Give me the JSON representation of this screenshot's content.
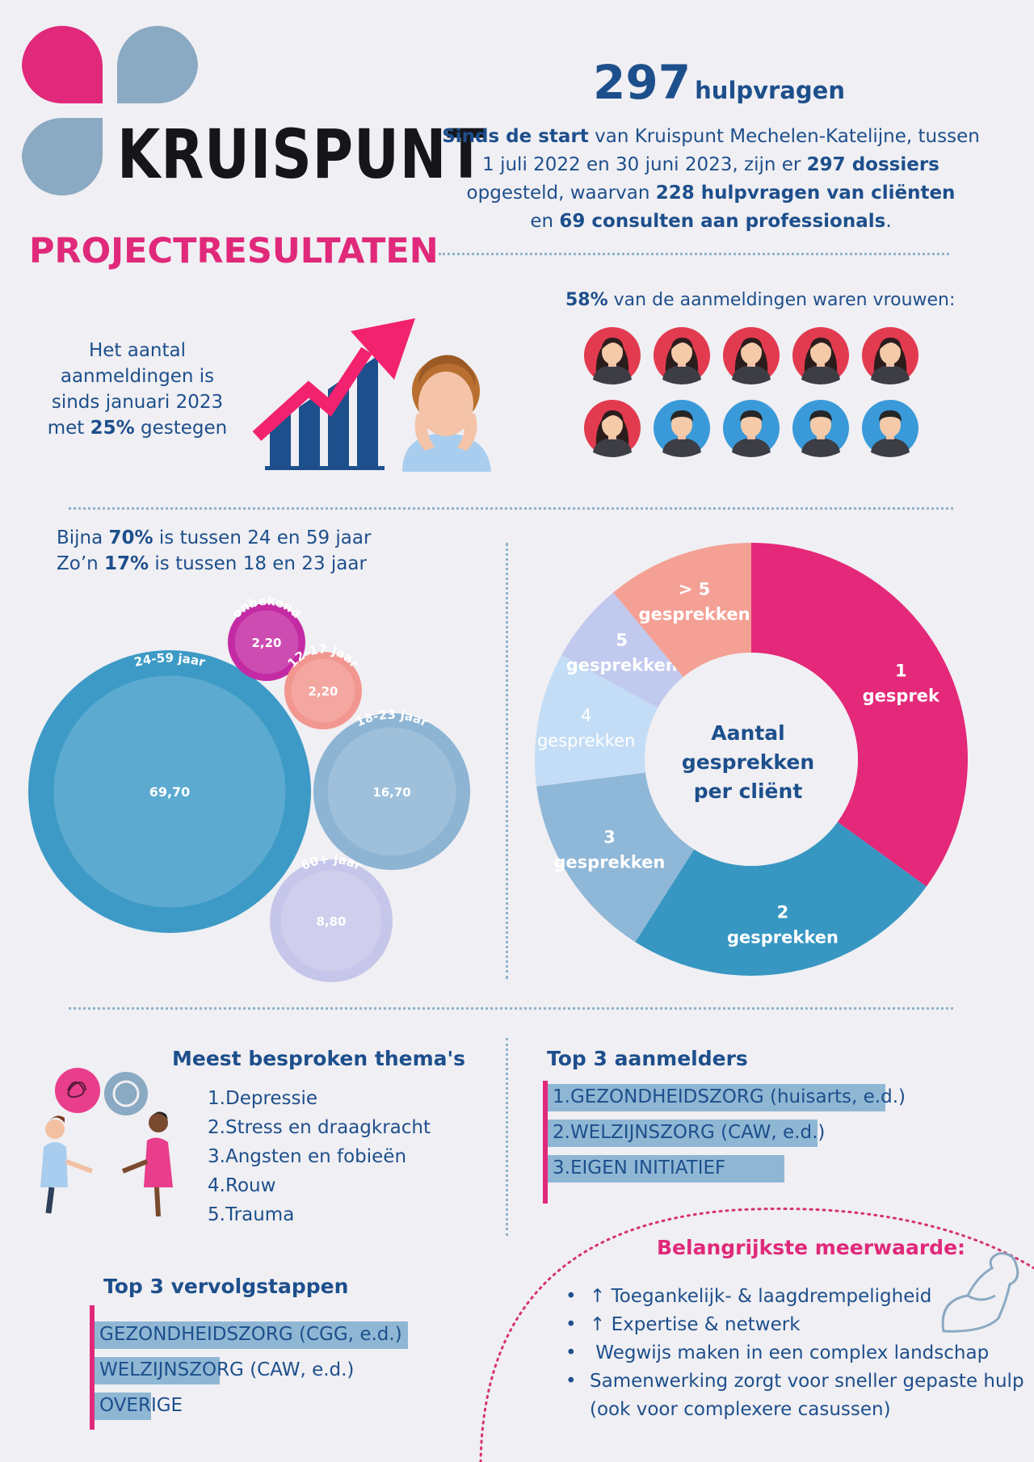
{
  "logo": {
    "wordmark": "KRUISPUNT",
    "colors": {
      "pink": "#e0297a",
      "blue": "#8aa9c2"
    }
  },
  "header": {
    "count": "297",
    "count_unit": "hulpvragen",
    "intro": {
      "l1_b": "Sinds de start",
      "l1_t": " van Kruispunt Mechelen-Katelijne, tussen",
      "l2_t": "1 juli 2022 en 30 juni 2023, zijn er ",
      "l2_b": "297 dossiers",
      "l3_t": "opgesteld, waarvan ",
      "l3_b": "228 hulpvragen van cliënten",
      "l4_t": "en ",
      "l4_b": "69 consulten aan professionals",
      "l4_e": "."
    }
  },
  "page_title": "PROJECTRESULTATEN",
  "growth": {
    "l1": "Het aantal",
    "l2": "aanmeldingen is",
    "l3": "sinds januari 2023",
    "l4_t": "met ",
    "l4_b": "25%",
    "l4_e": " gestegen"
  },
  "women": {
    "pct": "58%",
    "text": " van de aanmeldingen waren vrouwen:",
    "icons": [
      "woman-icon",
      "woman-icon",
      "woman-icon",
      "woman-icon",
      "woman-icon",
      "woman-icon",
      "man-icon",
      "man-icon",
      "man-icon",
      "man-icon"
    ]
  },
  "age": {
    "l1_t": "Bijna ",
    "l1_b": "70%",
    "l1_e": " is tussen 24 en 59 jaar",
    "l2_t": "Zo’n ",
    "l2_b": "17%",
    "l2_e": " is tussen 18 en 23 jaar"
  },
  "chart_data": [
    {
      "type": "bubble",
      "series": [
        {
          "label": "24-59 jaar",
          "value": 69.7,
          "display": "69,70",
          "color": "#3d9ac6"
        },
        {
          "label": "18-23 jaar",
          "value": 16.7,
          "display": "16,70",
          "color": "#8db4d3"
        },
        {
          "label": "60+ jaar",
          "value": 8.8,
          "display": "8,80",
          "color": "#c6c6ea"
        },
        {
          "label": "onbekend",
          "value": 2.2,
          "display": "2,20",
          "color": "#c42aa3"
        },
        {
          "label": "12-17 jaar",
          "value": 2.2,
          "display": "2,20",
          "color": "#f2978f"
        }
      ]
    },
    {
      "type": "pie",
      "title": [
        "Aantal",
        "gesprekken",
        "per cliënt"
      ],
      "series": [
        {
          "label": [
            "1",
            "gesprek"
          ],
          "value": 35,
          "color": "#e4287a"
        },
        {
          "label": [
            "2",
            "gesprekken"
          ],
          "value": 24,
          "color": "#3797c2"
        },
        {
          "label": [
            "3",
            "gesprekken"
          ],
          "value": 14,
          "color": "#8fb7d7"
        },
        {
          "label": [
            "4",
            "gesprekken"
          ],
          "value": 10,
          "color": "#c4ddf6"
        },
        {
          "label": [
            "5",
            "gesprekken"
          ],
          "value": 6,
          "color": "#c1c9ee"
        },
        {
          "label": [
            "> 5",
            "gesprekken"
          ],
          "value": 11,
          "color": "#f4a095"
        }
      ]
    }
  ],
  "themes": {
    "title": "Meest besproken thema's",
    "items": [
      "Depressie",
      "Stress en draagkracht",
      "Angsten en fobieën",
      "Rouw",
      "Trauma"
    ]
  },
  "referrers": {
    "title": "Top 3 aanmelders",
    "items": [
      {
        "label": "GEZONDHEIDSZORG (huisarts, e.d.)",
        "share": 1.0
      },
      {
        "label": "WELZIJNSZORG (CAW, e.d.)",
        "share": 0.8
      },
      {
        "label": "EIGEN INITIATIEF",
        "share": 0.7
      }
    ]
  },
  "next_steps": {
    "title": "Top 3 vervolgstappen",
    "items": [
      {
        "label": "GEZONDHEIDSZORG (CGG, e.d.)",
        "share": 1.0
      },
      {
        "label": "WELZIJNSZORG (CAW, e.d.)",
        "share": 0.4
      },
      {
        "label": "OVERIGE",
        "share": 0.18
      }
    ]
  },
  "added_value": {
    "title": "Belangrijkste meerwaarde:",
    "items": [
      "↑ Toegankelijk- & laagdrempeligheid",
      "↑ Expertise & netwerk",
      " Wegwijs maken in een complex landschap",
      "Samenwerking zorgt voor sneller gepaste hulp"
    ],
    "item4_cont": "(ook voor complexere casussen)"
  }
}
